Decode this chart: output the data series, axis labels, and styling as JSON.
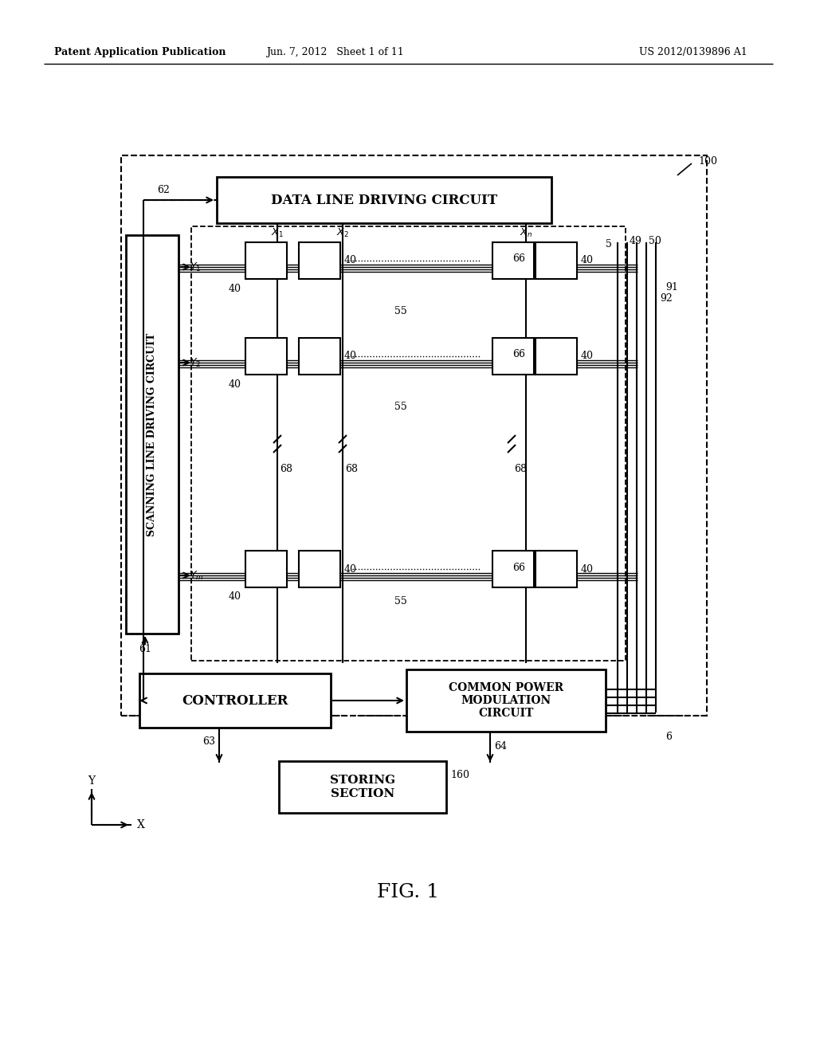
{
  "bg_color": "#ffffff",
  "header_left": "Patent Application Publication",
  "header_mid": "Jun. 7, 2012   Sheet 1 of 11",
  "header_right": "US 2012/0139896 A1",
  "fig_label": "FIG. 1",
  "data_line_label": "DATA LINE DRIVING CIRCUIT",
  "scanning_label": "SCANNING LINE DRIVING CIRCUIT",
  "controller_label": "CONTROLLER",
  "common_power_label": "COMMON POWER\nMODULATION\nCIRCUIT",
  "storing_label": "STORING\nSECTION",
  "ref_100": "100",
  "ref_5": "5",
  "ref_6": "6",
  "ref_49": "49",
  "ref_50": "50",
  "ref_55": "55",
  "ref_62": "62",
  "ref_63": "63",
  "ref_64": "64",
  "ref_61": "61",
  "ref_66": "66",
  "ref_68": "68",
  "ref_91": "91",
  "ref_92": "92",
  "ref_40": "40",
  "ref_160": "160",
  "ref_X1": "$X_1$",
  "ref_X2": "$X_2$",
  "ref_Xn": "$X_n$",
  "ref_Y1": "$Y_1$",
  "ref_Y2": "$Y_2$",
  "ref_Ym": "$Y_m$"
}
